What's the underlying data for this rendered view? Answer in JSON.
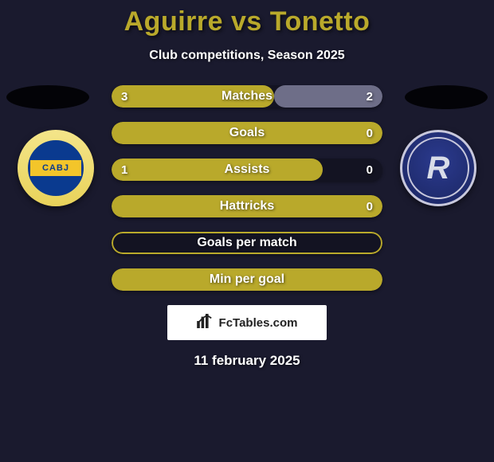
{
  "title_color": "#b9a92b",
  "title": "Aguirre vs Tonetto",
  "subtitle": "Club competitions, Season 2025",
  "bg_color": "#1a1a2e",
  "text_color": "#ffffff",
  "crest_left": {
    "text": "CABJ"
  },
  "crest_right": {
    "text": "R"
  },
  "row_outline_color": "#b9a92b",
  "row_fill_color": "#b9a92b",
  "row_bg_color": "rgba(0,0,0,0.25)",
  "rows": [
    {
      "label": "Matches",
      "val_left": "3",
      "val_right": "2",
      "left_pct": 60,
      "right_pct": 40
    },
    {
      "label": "Goals",
      "val_left": "",
      "val_right": "0",
      "left_pct": 100,
      "right_pct": 0
    },
    {
      "label": "Assists",
      "val_left": "1",
      "val_right": "0",
      "left_pct": 78,
      "right_pct": 0
    },
    {
      "label": "Hattricks",
      "val_left": "",
      "val_right": "0",
      "left_pct": 100,
      "right_pct": 0
    },
    {
      "label": "Goals per match",
      "val_left": "",
      "val_right": "",
      "left_pct": 100,
      "right_pct": 0,
      "outline_only": true
    },
    {
      "label": "Min per goal",
      "val_left": "",
      "val_right": "",
      "left_pct": 100,
      "right_pct": 0
    }
  ],
  "footer_brand": "FcTables.com",
  "date_text": "11 february 2025"
}
